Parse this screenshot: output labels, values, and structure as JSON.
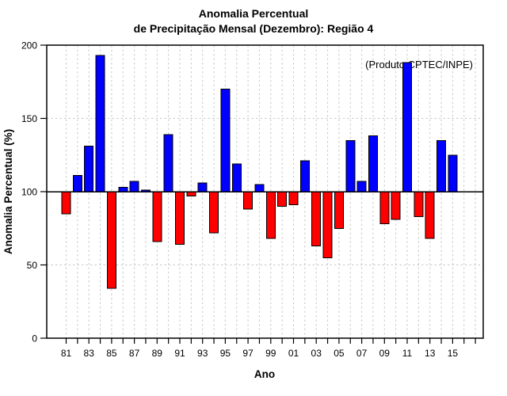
{
  "title": {
    "line1": "Anomalia Percentual",
    "line2": "de Precipitação Mensal (Dezembro): Região 4"
  },
  "annotation": "(Produto CPTEC/INPE)",
  "colors": {
    "bar_above_baseline": "#0000ff",
    "bar_below_baseline": "#ff0000",
    "bar_outline": "#000000",
    "grid": "#c9c9c9",
    "axis": "#000000",
    "annotation_text": "#a8a8a8"
  },
  "chart_data": {
    "type": "bar",
    "title": "Anomalia Percentual de Precipitação Mensal (Dezembro): Região 4",
    "xlabel": "Ano",
    "ylabel": "Anomalia Percentual (%)",
    "baseline": 100,
    "ylim": [
      0,
      200
    ],
    "yticks": [
      0,
      50,
      100,
      150,
      200
    ],
    "grid": "dashed vertical line per year; dashed horizontal at 50 and 150; solid black line at baseline 100",
    "legend_position": "none",
    "color_rule": "blue if value >= 100, red if value < 100",
    "x": [
      1981,
      1982,
      1983,
      1984,
      1985,
      1986,
      1987,
      1988,
      1989,
      1990,
      1991,
      1992,
      1993,
      1994,
      1995,
      1996,
      1997,
      1998,
      1999,
      2000,
      2001,
      2002,
      2003,
      2004,
      2005,
      2006,
      2007,
      2008,
      2009,
      2010,
      2011,
      2012,
      2013,
      2014,
      2015
    ],
    "values": [
      85,
      111,
      131,
      193,
      34,
      103,
      107,
      101,
      66,
      139,
      64,
      97,
      106,
      72,
      170,
      119,
      88,
      105,
      68,
      90,
      91,
      121,
      63,
      55,
      75,
      135,
      107,
      138,
      78,
      81,
      188,
      83,
      68,
      135,
      125
    ],
    "xtick_years": [
      1981,
      1983,
      1985,
      1987,
      1989,
      1991,
      1993,
      1995,
      1997,
      1999,
      2001,
      2003,
      2005,
      2007,
      2009,
      2011,
      2013,
      2015
    ],
    "xtick_labels": [
      "81",
      "83",
      "85",
      "87",
      "89",
      "91",
      "93",
      "95",
      "97",
      "99",
      "01",
      "03",
      "05",
      "07",
      "09",
      "11",
      "13",
      "15"
    ]
  }
}
